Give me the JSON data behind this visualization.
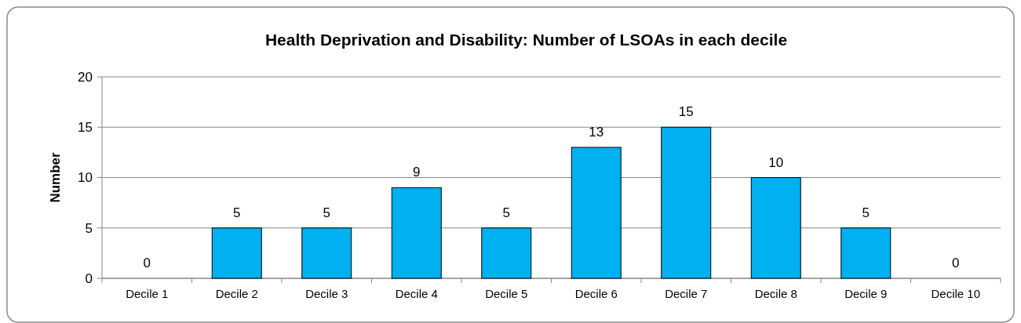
{
  "chart_data": {
    "type": "bar",
    "title": "Health Deprivation and Disability: Number of LSOAs in each decile",
    "ylabel": "Number",
    "categories": [
      "Decile 1",
      "Decile 2",
      "Decile 3",
      "Decile 4",
      "Decile 5",
      "Decile 6",
      "Decile 7",
      "Decile 8",
      "Decile 9",
      "Decile 10"
    ],
    "values": [
      0,
      5,
      5,
      9,
      5,
      13,
      15,
      10,
      5,
      0
    ],
    "color": "#00b0f0",
    "ylim": [
      0,
      20
    ],
    "yticks": [
      0,
      5,
      10,
      15,
      20
    ],
    "grid": "y",
    "data_labels": true
  }
}
